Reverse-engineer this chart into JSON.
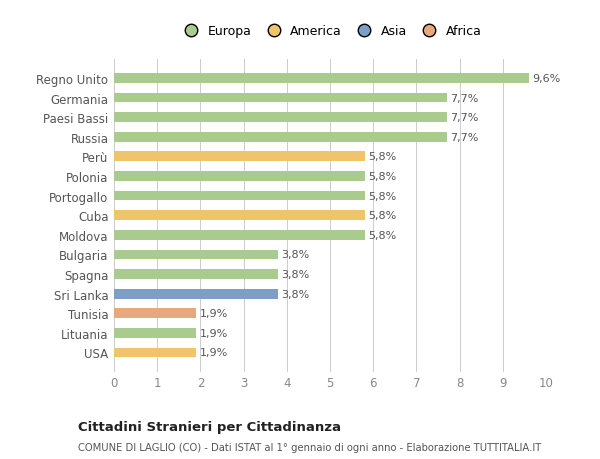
{
  "categories": [
    "USA",
    "Lituania",
    "Tunisia",
    "Sri Lanka",
    "Spagna",
    "Bulgaria",
    "Moldova",
    "Cuba",
    "Portogallo",
    "Polonia",
    "Perù",
    "Russia",
    "Paesi Bassi",
    "Germania",
    "Regno Unito"
  ],
  "values": [
    1.9,
    1.9,
    1.9,
    3.8,
    3.8,
    3.8,
    5.8,
    5.8,
    5.8,
    5.8,
    5.8,
    7.7,
    7.7,
    7.7,
    9.6
  ],
  "labels": [
    "1,9%",
    "1,9%",
    "1,9%",
    "3,8%",
    "3,8%",
    "3,8%",
    "5,8%",
    "5,8%",
    "5,8%",
    "5,8%",
    "5,8%",
    "7,7%",
    "7,7%",
    "7,7%",
    "9,6%"
  ],
  "colors": [
    "#f0c46b",
    "#aacb8e",
    "#e8a87c",
    "#7b9fc7",
    "#aacb8e",
    "#aacb8e",
    "#aacb8e",
    "#f0c46b",
    "#aacb8e",
    "#aacb8e",
    "#f0c46b",
    "#aacb8e",
    "#aacb8e",
    "#aacb8e",
    "#aacb8e"
  ],
  "legend_labels": [
    "Europa",
    "America",
    "Asia",
    "Africa"
  ],
  "legend_colors": [
    "#aacb8e",
    "#f0c46b",
    "#7b9fc7",
    "#e8a87c"
  ],
  "xlim": [
    0,
    10
  ],
  "xticks": [
    0,
    1,
    2,
    3,
    4,
    5,
    6,
    7,
    8,
    9,
    10
  ],
  "title": "Cittadini Stranieri per Cittadinanza",
  "subtitle": "COMUNE DI LAGLIO (CO) - Dati ISTAT al 1° gennaio di ogni anno - Elaborazione TUTTITALIA.IT",
  "bg_color": "#ffffff",
  "bar_height": 0.5,
  "grid_color": "#cccccc",
  "label_color": "#555555",
  "tick_color": "#888888"
}
